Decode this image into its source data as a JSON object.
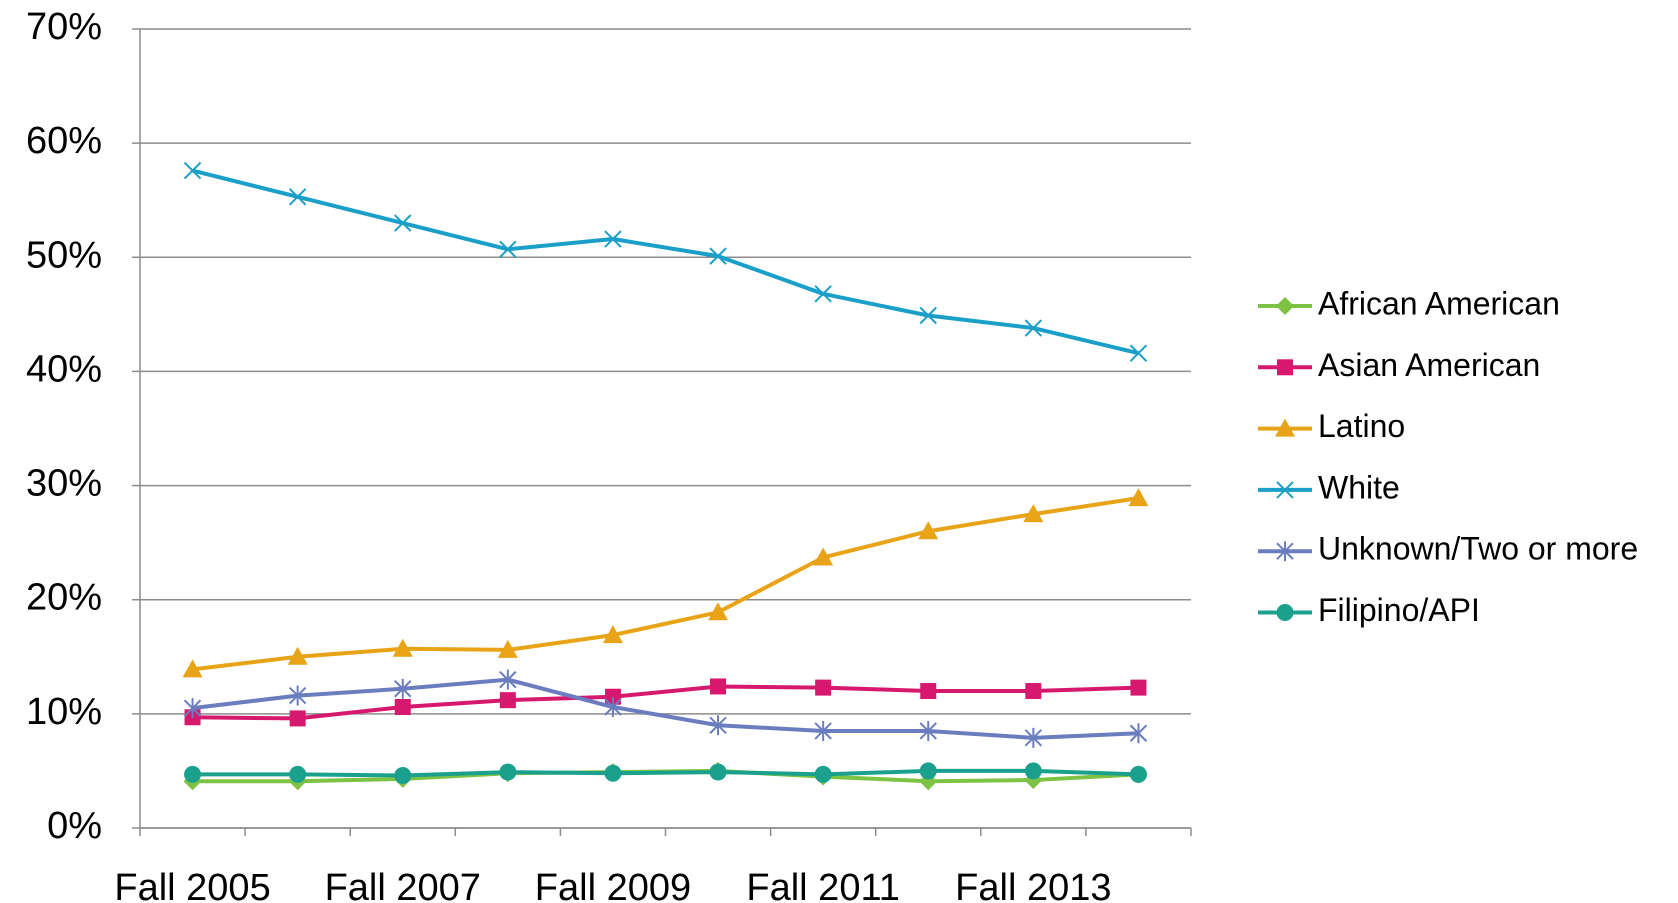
{
  "chart_data": {
    "type": "line",
    "categories": [
      "Fall 2005",
      null,
      "Fall 2007",
      null,
      "Fall 2009",
      null,
      "Fall 2011",
      null,
      "Fall 2013",
      null
    ],
    "series": [
      {
        "name": "African American",
        "color": "#7dc242",
        "marker": "diamond",
        "values": [
          4.1,
          4.1,
          4.3,
          4.8,
          4.9,
          5.0,
          4.5,
          4.1,
          4.2,
          4.7
        ]
      },
      {
        "name": "Asian American",
        "color": "#d6186f",
        "marker": "square",
        "values": [
          9.7,
          9.6,
          10.6,
          11.2,
          11.5,
          12.4,
          12.3,
          12.0,
          12.0,
          12.3
        ]
      },
      {
        "name": "Latino",
        "color": "#e8a317",
        "marker": "triangle",
        "values": [
          13.9,
          15.0,
          15.7,
          15.6,
          16.9,
          18.9,
          23.7,
          26.0,
          27.5,
          28.9
        ]
      },
      {
        "name": "White",
        "color": "#1a9fc9",
        "marker": "x",
        "values": [
          57.6,
          55.3,
          53.0,
          50.7,
          51.6,
          50.1,
          46.8,
          44.9,
          43.8,
          41.6
        ]
      },
      {
        "name": "Unknown/Two or more",
        "color": "#6a7dbf",
        "marker": "asterisk",
        "values": [
          10.5,
          11.6,
          12.2,
          13.0,
          10.6,
          9.0,
          8.5,
          8.5,
          7.9,
          8.3
        ]
      },
      {
        "name": "Filipino/API",
        "color": "#1aa08c",
        "marker": "circle",
        "values": [
          4.7,
          4.7,
          4.6,
          4.9,
          4.8,
          4.9,
          4.7,
          5.0,
          5.0,
          4.7
        ]
      }
    ],
    "ylim": [
      0,
      70
    ],
    "yticks": [
      {
        "value": 0,
        "label": "0%"
      },
      {
        "value": 10,
        "label": "10%"
      },
      {
        "value": 20,
        "label": "20%"
      },
      {
        "value": 30,
        "label": "30%"
      },
      {
        "value": 40,
        "label": "40%"
      },
      {
        "value": 50,
        "label": "50%"
      },
      {
        "value": 60,
        "label": "60%"
      },
      {
        "value": 70,
        "label": "70%"
      }
    ],
    "grid": true,
    "legend": "right"
  }
}
